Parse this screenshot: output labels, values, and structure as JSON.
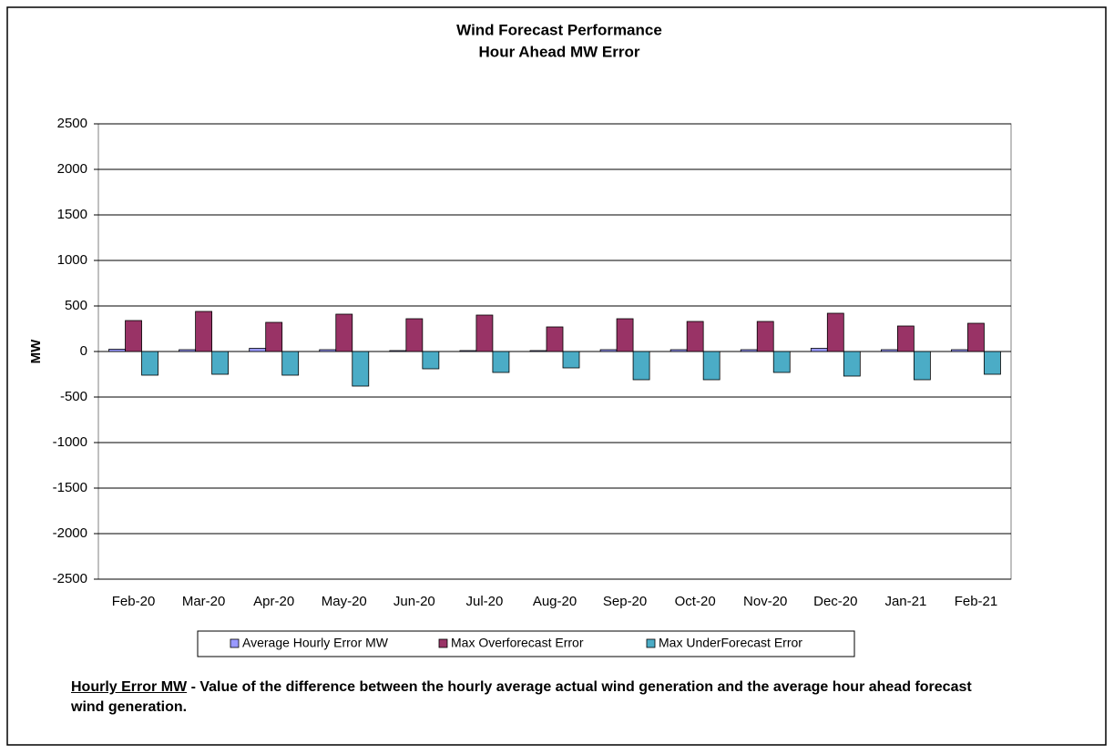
{
  "chart_data": {
    "type": "bar",
    "title": "Wind Forecast Performance",
    "subtitle": "Hour Ahead MW Error",
    "y_label": "MW",
    "categories": [
      "Feb-20",
      "Mar-20",
      "Apr-20",
      "May-20",
      "Jun-20",
      "Jul-20",
      "Aug-20",
      "Sep-20",
      "Oct-20",
      "Nov-20",
      "Dec-20",
      "Jan-21",
      "Feb-21"
    ],
    "series": [
      {
        "name": "Average Hourly Error MW",
        "color": "#9999ff",
        "values": [
          25,
          20,
          35,
          20,
          10,
          10,
          10,
          20,
          20,
          20,
          35,
          20,
          20
        ]
      },
      {
        "name": "Max Overforecast Error",
        "color": "#993366",
        "values": [
          340,
          440,
          320,
          410,
          360,
          400,
          270,
          360,
          330,
          330,
          420,
          280,
          310
        ]
      },
      {
        "name": "Max UnderForecast Error",
        "color": "#4bacc6",
        "values": [
          -260,
          -250,
          -260,
          -380,
          -190,
          -230,
          -180,
          -310,
          -310,
          -230,
          -270,
          -310,
          -250
        ]
      }
    ],
    "ylim": [
      -2500,
      2500
    ],
    "yticks": [
      -2500,
      -2000,
      -1500,
      -1000,
      -500,
      0,
      500,
      1000,
      1500,
      2000,
      2500
    ],
    "grid": true,
    "legend": "bottom",
    "note": {
      "term": "Hourly Error MW",
      "text": " - Value of the difference between the hourly average actual wind generation and the average hour ahead forecast wind generation."
    }
  }
}
